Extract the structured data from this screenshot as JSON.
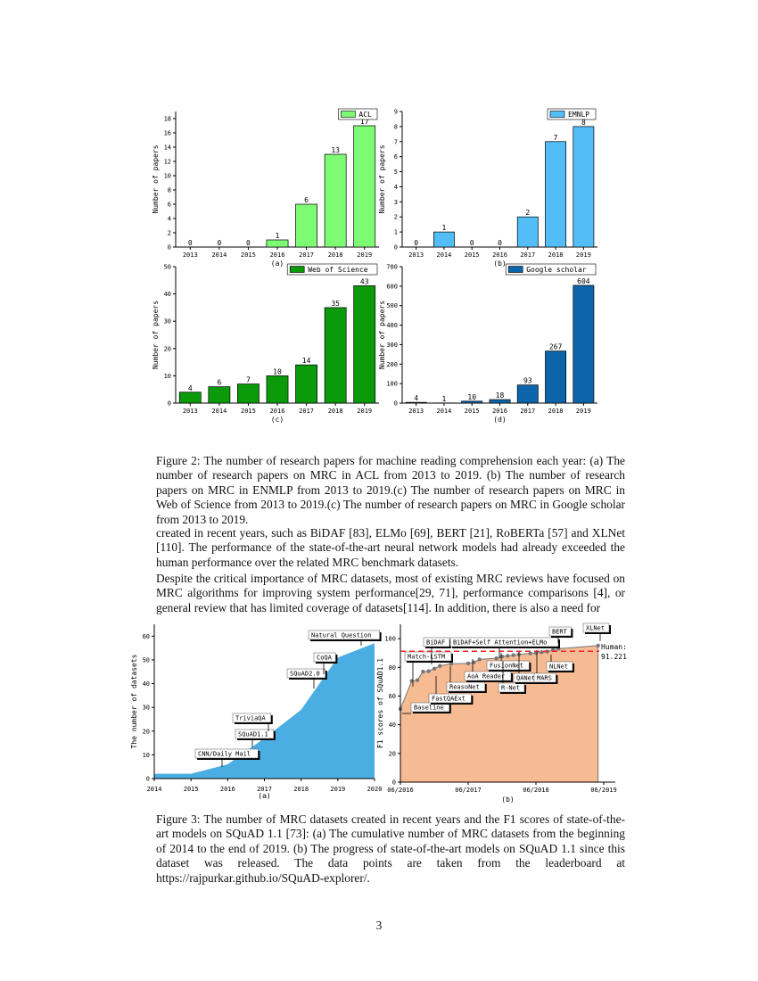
{
  "chart_data": [
    {
      "id": "a",
      "type": "bar",
      "categories": [
        "2013",
        "2014",
        "2015",
        "2016",
        "2017",
        "2018",
        "2019"
      ],
      "series": [
        {
          "name": "ACL",
          "values": [
            0,
            0,
            0,
            1,
            6,
            13,
            17
          ],
          "color": "#7DFB73"
        }
      ],
      "ylabel": "Number of papers",
      "ylim": [
        0,
        19
      ],
      "yticks": [
        0,
        2,
        4,
        6,
        8,
        10,
        12,
        14,
        16,
        18
      ],
      "sublabel": "(a)",
      "legend": "top-right"
    },
    {
      "id": "b",
      "type": "bar",
      "categories": [
        "2013",
        "2014",
        "2015",
        "2016",
        "2017",
        "2018",
        "2019"
      ],
      "series": [
        {
          "name": "EMNLP",
          "values": [
            0,
            1,
            0,
            0,
            2,
            7,
            8
          ],
          "color": "#52BDF6"
        }
      ],
      "ylabel": "Number of papers",
      "ylim": [
        0,
        9
      ],
      "yticks": [
        0,
        1,
        2,
        3,
        4,
        5,
        6,
        7,
        8,
        9
      ],
      "sublabel": "(b)",
      "legend": "top-right"
    },
    {
      "id": "c",
      "type": "bar",
      "categories": [
        "2013",
        "2014",
        "2015",
        "2016",
        "2017",
        "2018",
        "2019"
      ],
      "series": [
        {
          "name": "Web of Science",
          "values": [
            4,
            6,
            7,
            10,
            14,
            35,
            43
          ],
          "color": "#0A9A0A"
        }
      ],
      "ylabel": "Number of papers",
      "ylim": [
        0,
        50
      ],
      "yticks": [
        0,
        10,
        20,
        30,
        40,
        50
      ],
      "sublabel": "(c)",
      "legend": "top-right"
    },
    {
      "id": "d",
      "type": "bar",
      "categories": [
        "2013",
        "2014",
        "2015",
        "2016",
        "2017",
        "2018",
        "2019"
      ],
      "series": [
        {
          "name": "Google scholar",
          "values": [
            4,
            1,
            10,
            18,
            93,
            267,
            604
          ],
          "color": "#0E64A8"
        }
      ],
      "ylabel": "Number of papers",
      "ylim": [
        0,
        700
      ],
      "yticks": [
        0,
        100,
        200,
        300,
        400,
        500,
        600,
        700
      ],
      "sublabel": "(d)",
      "legend": "top-right"
    },
    {
      "id": "e",
      "type": "area",
      "x": [
        2014,
        2015,
        2016,
        2017,
        2018,
        2018.5,
        2019,
        2020
      ],
      "y": [
        2,
        2,
        6,
        17,
        29,
        40,
        51,
        57
      ],
      "xlim": [
        2014,
        2020
      ],
      "xticks": [
        "2014",
        "2015",
        "2016",
        "2017",
        "2018",
        "2019",
        "2020"
      ],
      "ylim": [
        0,
        65
      ],
      "yticks": [
        0,
        10,
        20,
        30,
        40,
        50,
        60
      ],
      "ylabel": "The number of datasets",
      "sublabel": "(a)",
      "color": "#4BAEE2",
      "annotations": [
        {
          "text": "CNN/Daily Mail",
          "x": 2015.9
        },
        {
          "text": "SQuAD1.1",
          "x": 2016.7
        },
        {
          "text": "TriviaQA",
          "x": 2017.3
        },
        {
          "text": "SQuAD2.0",
          "x": 2018.45
        },
        {
          "text": "CoQA",
          "x": 2018.7
        },
        {
          "text": "Natural Question",
          "x": 2019.75
        }
      ]
    },
    {
      "id": "f",
      "type": "area",
      "x": [
        "2016-06",
        "2016-08",
        "2016-09",
        "2016-10",
        "2016-11",
        "2016-12",
        "2017-01",
        "2017-03",
        "2017-06",
        "2017-07",
        "2017-08",
        "2017-11",
        "2017-12",
        "2018-01",
        "2018-02",
        "2018-03",
        "2018-05",
        "2018-06",
        "2018-07",
        "2018-08",
        "2018-09",
        "2018-10",
        "2019-05"
      ],
      "y": [
        51,
        70.5,
        71,
        77,
        77.3,
        79,
        81,
        82.5,
        82.7,
        83.5,
        85.5,
        86.3,
        87.5,
        88,
        88.5,
        89,
        89.7,
        90,
        90.5,
        91,
        92,
        93,
        95.1
      ],
      "xticks": [
        "06/2016",
        "06/2017",
        "06/2018",
        "06/2019"
      ],
      "ylim": [
        0,
        110
      ],
      "yticks": [
        0,
        20,
        40,
        60,
        80,
        100
      ],
      "ylabel": "F1 scores of SQuAD1.1",
      "sublabel": "(b)",
      "color": "#F7BB93",
      "reference_line": {
        "value": 91.221,
        "label": "Human:",
        "value_label": "91.221",
        "color": "#E8262A"
      },
      "annotations": [
        "Baseline",
        "Match-LSTM",
        "BiDAF",
        "FastQAExt",
        "ReasoNet",
        "AoA Reader",
        "BiDAF+Self Attention+ELMo",
        "FusionNet",
        "R-Net",
        "QANet",
        "MARS",
        "NLNet",
        "BERT",
        "XLNet"
      ]
    }
  ],
  "caption2": {
    "label": "Figure 2:",
    "text": "The number of research papers for machine reading comprehension each year: (a) The number of research papers on MRC in ACL from 2013 to 2019. (b) The number of research papers on MRC in ENMLP from 2013 to 2019.(c) The number of research papers on MRC in Web of Science from 2013 to 2019.(c) The number of research papers on MRC in Google scholar from 2013 to 2019."
  },
  "para1": "created in recent years, such as BiDAF [83], ELMo [69], BERT [21], RoBERTa [57] and XLNet [110]. The performance of the state-of-the-art neural network models had already exceeded the human performance over the related MRC benchmark datasets.",
  "para2": "Despite the critical importance of MRC datasets, most of existing MRC reviews have focused on MRC algorithms for improving system performance[29, 71], performance comparisons [4], or general review that has limited coverage of datasets[114]. In addition, there is also a need for",
  "caption3": {
    "label": "Figure 3:",
    "text": "The number of MRC datasets created in recent years and the F1 scores of state-of-the-art models on SQuAD 1.1 [73]: (a) The cumulative number of MRC datasets from the beginning of 2014 to the end of 2019. (b) The progress of state-of-the-art models on SQuAD 1.1 since this dataset was released. The data points are taken from the leaderboard at https://rajpurkar.github.io/SQuAD-explorer/."
  },
  "page_number": "3"
}
